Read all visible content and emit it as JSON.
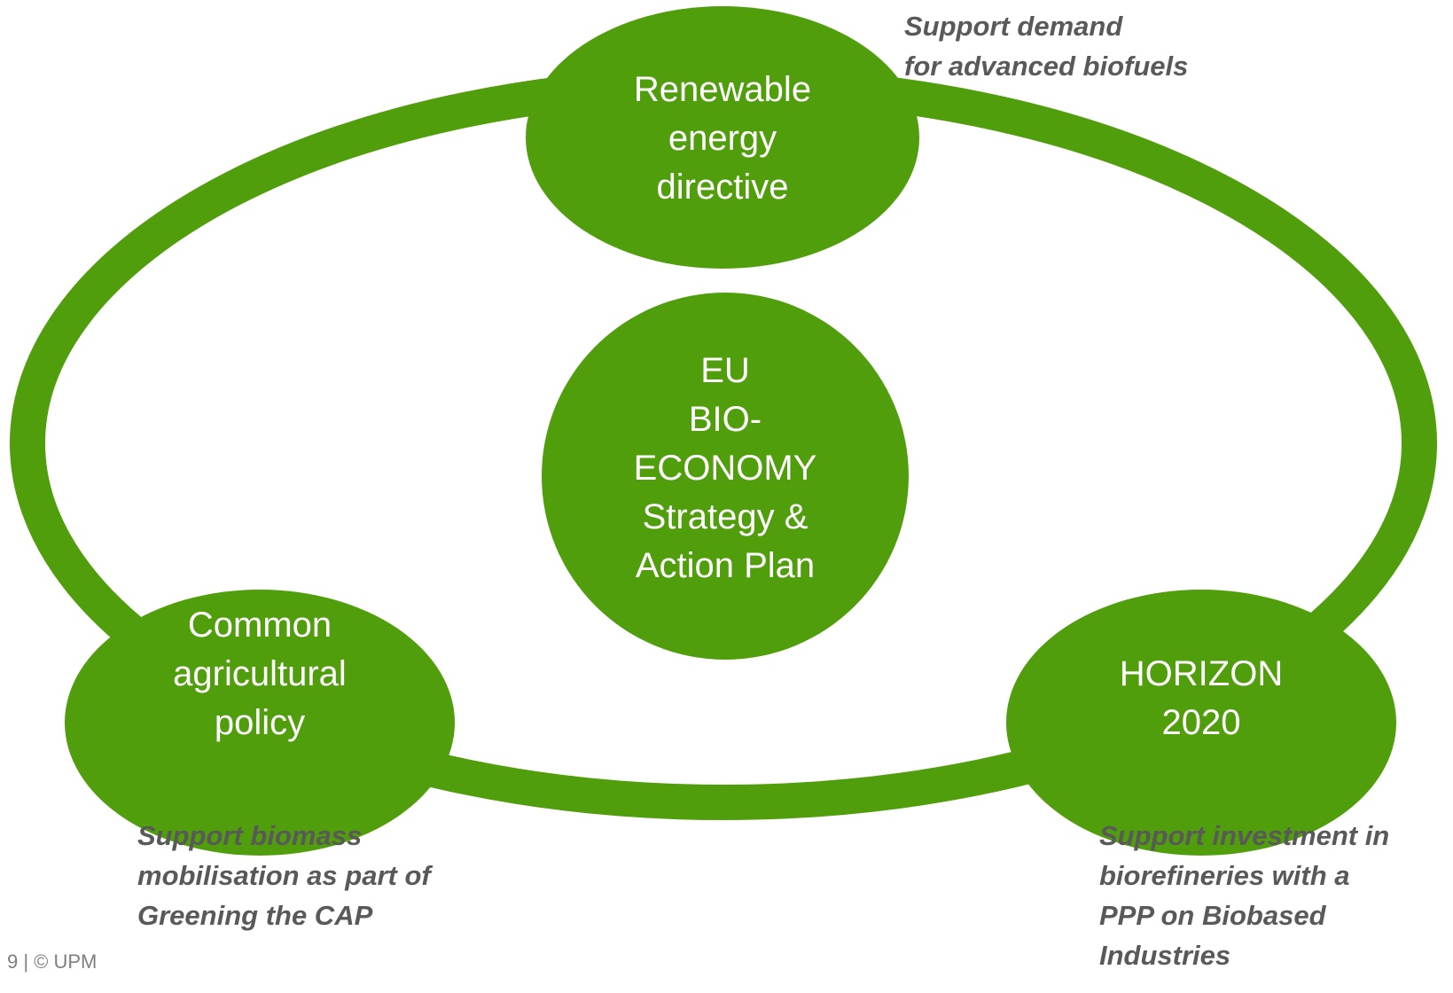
{
  "nodes": [
    {
      "label": [
        "Renewable",
        "energy",
        "directive"
      ]
    },
    {
      "label": [
        "EU",
        "BIO-",
        "ECONOMY",
        "Strategy &",
        "Action Plan"
      ]
    },
    {
      "label": [
        "Common",
        "agricultural",
        "policy"
      ]
    },
    {
      "label": [
        "HORIZON",
        "2020"
      ]
    }
  ],
  "notes": [
    [
      "Support demand",
      "for advanced biofuels"
    ],
    [
      "Support biomass",
      "mobilisation as part of",
      "Greening the CAP"
    ],
    [
      "Support investment in",
      "biorefineries with a",
      "PPP on Biobased",
      "Industries"
    ]
  ],
  "footer": "9 | © UPM"
}
